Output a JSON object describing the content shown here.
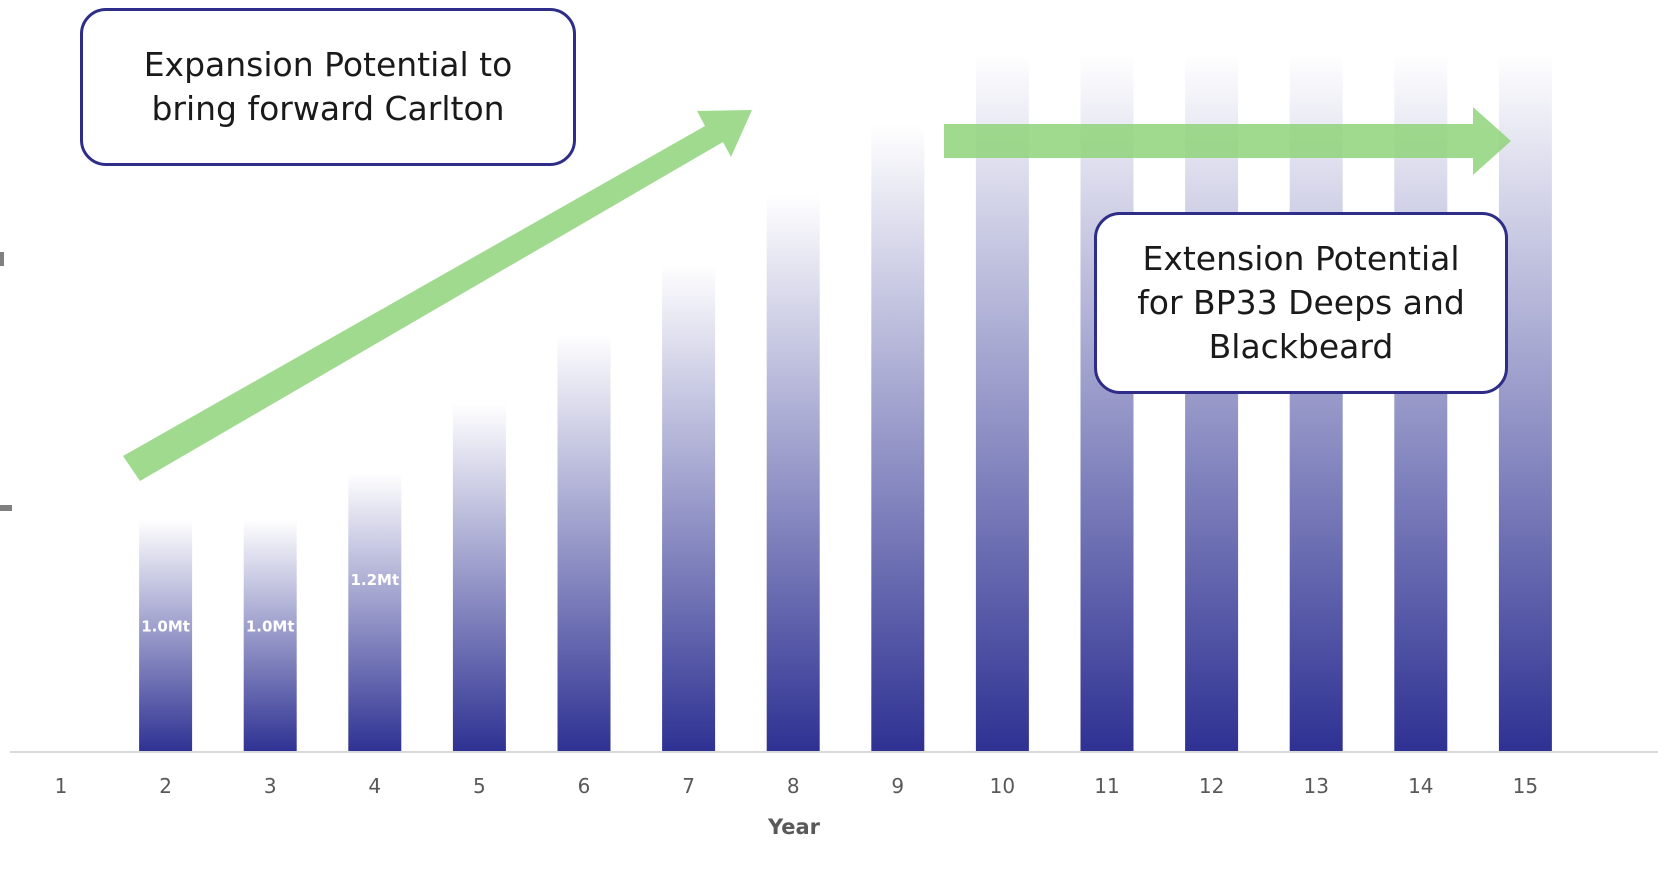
{
  "chart_data": {
    "type": "bar",
    "categories": [
      "1",
      "2",
      "3",
      "4",
      "5",
      "6",
      "7",
      "8",
      "9",
      "10",
      "11",
      "12",
      "13",
      "14",
      "15"
    ],
    "values": [
      0,
      1.0,
      1.0,
      1.2,
      1.5,
      1.8,
      2.1,
      2.4,
      2.7,
      3.0,
      3.0,
      3.0,
      3.0,
      3.0,
      3.0
    ],
    "data_labels": [
      "",
      "1.0Mt",
      "1.0Mt",
      "1.2Mt",
      "",
      "",
      "",
      "",
      "",
      "",
      "",
      "",
      "",
      "",
      ""
    ],
    "xlabel": "Year",
    "ylabel": "",
    "ylim": [
      0,
      3.0
    ],
    "grid": false,
    "bar_color_bottom": "#2e3192",
    "bar_color_top": "#ffffff",
    "arrow_color": "#8fd47a",
    "annotations": [
      {
        "id": "expansion",
        "text": "Expansion Potential to bring forward Carlton"
      },
      {
        "id": "extension",
        "text": "Extension Potential for BP33 Deeps and Blackbeard"
      }
    ]
  },
  "colors": {
    "callout_border": "#2e2d87",
    "axis": "#d9d9d9",
    "tick_text": "#595959"
  }
}
